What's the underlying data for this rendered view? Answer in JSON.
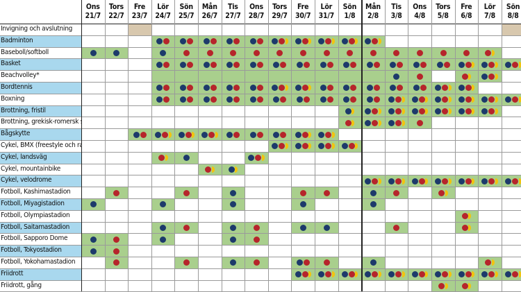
{
  "days": [
    {
      "name": "Ons",
      "date": "21/7"
    },
    {
      "name": "Tors",
      "date": "22/7"
    },
    {
      "name": "Fre",
      "date": "23/7"
    },
    {
      "name": "Lör",
      "date": "24/7"
    },
    {
      "name": "Sön",
      "date": "25/7"
    },
    {
      "name": "Mån",
      "date": "26/7"
    },
    {
      "name": "Tis",
      "date": "27/7"
    },
    {
      "name": "Ons",
      "date": "28/7"
    },
    {
      "name": "Tors",
      "date": "29/7"
    },
    {
      "name": "Fre",
      "date": "30/7"
    },
    {
      "name": "Lör",
      "date": "31/7"
    },
    {
      "name": "Sön",
      "date": "1/8"
    },
    {
      "name": "Mån",
      "date": "2/8"
    },
    {
      "name": "Tis",
      "date": "3/8"
    },
    {
      "name": "Ons",
      "date": "4/8"
    },
    {
      "name": "Tors",
      "date": "5/8"
    },
    {
      "name": "Fre",
      "date": "6/8"
    },
    {
      "name": "Lör",
      "date": "7/8"
    },
    {
      "name": "Sön",
      "date": "8/8"
    }
  ],
  "colors": {
    "green": "#a9cf8d",
    "blue": "#a9d8ee",
    "beige": "#d8c8ae",
    "navy_dot": "#1d3a6b",
    "red_dot": "#b6252b",
    "gold_dot": "#f1c40f"
  },
  "rows": [
    {
      "label": "Invigning och avslutning",
      "blue": false,
      "cells": [
        "",
        "",
        "B",
        "",
        "",
        "",
        "",
        "",
        "",
        "",
        "",
        "",
        "",
        "",
        "",
        "",
        "",
        "",
        "B"
      ]
    },
    {
      "label": "Badminton",
      "blue": true,
      "cells": [
        "",
        "",
        "",
        "nr",
        "nr",
        "nr",
        "nr",
        "nr",
        "nrg",
        "nrg",
        "nrg",
        "nrg",
        "nrg",
        "",
        "",
        "",
        "",
        "",
        ""
      ]
    },
    {
      "label": "Baseboll/softboll",
      "blue": false,
      "cells": [
        "n",
        "n",
        "",
        "n",
        "r",
        "r",
        "r",
        "r",
        "r",
        "r",
        "r",
        "r",
        "r",
        "r",
        "r",
        "r",
        "r",
        "rg",
        ""
      ]
    },
    {
      "label": "Basket",
      "blue": true,
      "cells": [
        "",
        "",
        "",
        "nr",
        "nr",
        "nr",
        "nr",
        "nr",
        "nr",
        "nr",
        "nr",
        "nr",
        "nr",
        "nr",
        "nr",
        "nr",
        "nrg",
        "nrg",
        "nrg"
      ]
    },
    {
      "label": "Beachvolley*",
      "blue": false,
      "cells": [
        "",
        "",
        "",
        "e",
        "e",
        "e",
        "e",
        "e",
        "e",
        "e",
        "e",
        "e",
        "e",
        "n",
        "r",
        "",
        "rg",
        "nrg",
        ""
      ]
    },
    {
      "label": "Bordtennis",
      "blue": true,
      "cells": [
        "",
        "",
        "",
        "nr",
        "nr",
        "nr",
        "nr",
        "nr",
        "nrg",
        "nrg",
        "nr",
        "nr",
        "nr",
        "nr",
        "nr",
        "nrg",
        "nrg",
        "",
        ""
      ]
    },
    {
      "label": "Boxning",
      "blue": false,
      "cells": [
        "",
        "",
        "",
        "nr",
        "nr",
        "nr",
        "nr",
        "nr",
        "nr",
        "nr",
        "nr",
        "nr",
        "nr",
        "nrg",
        "nrg",
        "nrg",
        "nrg",
        "nrg",
        "nrg"
      ]
    },
    {
      "label": "Brottning, fristil",
      "blue": true,
      "cells": [
        "",
        "",
        "",
        "",
        "",
        "",
        "",
        "",
        "",
        "",
        "",
        "ng",
        "nrg",
        "nrg",
        "nrg",
        "nrg",
        "nrg",
        "nrg",
        ""
      ]
    },
    {
      "label": "Brottning, grekisk-romersk stil",
      "blue": false,
      "cells": [
        "",
        "",
        "",
        "",
        "",
        "",
        "",
        "",
        "",
        "",
        "",
        "rg",
        "nrg",
        "nrg",
        "r",
        "",
        "",
        "",
        ""
      ]
    },
    {
      "label": "Bågskytte",
      "blue": true,
      "cells": [
        "",
        "",
        "nr",
        "nrg",
        "nrg",
        "nrg",
        "nr",
        "nr",
        "nr",
        "nrg",
        "nrg",
        "",
        "",
        "",
        "",
        "",
        "",
        "",
        ""
      ]
    },
    {
      "label": "Cykel, BMX (freestyle och racing)",
      "blue": false,
      "cells": [
        "",
        "",
        "",
        "",
        "",
        "",
        "",
        "",
        "nrg",
        "nrg",
        "nrg",
        "nrg",
        "",
        "",
        "",
        "",
        "",
        "",
        ""
      ]
    },
    {
      "label": "Cykel, landsväg",
      "blue": true,
      "cells": [
        "",
        "",
        "",
        "rg",
        "n",
        "",
        "",
        "nrg",
        "",
        "",
        "",
        "",
        "",
        "",
        "",
        "",
        "",
        "",
        ""
      ]
    },
    {
      "label": "Cykel, mountainbike",
      "blue": false,
      "cells": [
        "",
        "",
        "",
        "",
        "",
        "rg",
        "ng",
        "",
        "",
        "",
        "",
        "",
        "",
        "",
        "",
        "",
        "",
        "",
        ""
      ]
    },
    {
      "label": "Cykel, velodrome",
      "blue": true,
      "cells": [
        "",
        "",
        "",
        "",
        "",
        "",
        "",
        "",
        "",
        "",
        "",
        "",
        "nrg",
        "nrg",
        "nrg",
        "nrg",
        "nrg",
        "nrg",
        "nrg"
      ]
    },
    {
      "label": "Fotboll, Kashimastadion",
      "blue": false,
      "cells": [
        "",
        "r",
        "",
        "",
        "r",
        "",
        "n",
        "",
        "",
        "r",
        "r",
        "",
        "n",
        "r",
        "",
        "rg",
        "",
        "",
        ""
      ]
    },
    {
      "label": "Fotboll, Miyagistadion",
      "blue": true,
      "cells": [
        "n",
        "",
        "",
        "n",
        "",
        "",
        "n",
        "",
        "",
        "n",
        "",
        "",
        "n",
        "",
        "",
        "",
        "",
        "",
        ""
      ]
    },
    {
      "label": "Fotboll, Olympiastadion",
      "blue": false,
      "cells": [
        "",
        "",
        "",
        "",
        "",
        "",
        "",
        "",
        "",
        "",
        "",
        "",
        "",
        "",
        "",
        "",
        "rg",
        "",
        ""
      ]
    },
    {
      "label": "Fotboll, Saitamastadion",
      "blue": true,
      "cells": [
        "",
        "",
        "",
        "n",
        "r",
        "",
        "n",
        "r",
        "",
        "n",
        "n",
        "",
        "",
        "r",
        "",
        "",
        "rg",
        "",
        ""
      ]
    },
    {
      "label": "Fotboll, Sapporo Dome",
      "blue": false,
      "cells": [
        "n",
        "r",
        "",
        "n",
        "",
        "",
        "n",
        "r",
        "",
        "",
        "",
        "",
        "",
        "",
        "",
        "",
        "",
        "",
        ""
      ]
    },
    {
      "label": "Fotboll, Tokyostadion",
      "blue": true,
      "cells": [
        "n",
        "r",
        "",
        "",
        "",
        "",
        "",
        "",
        "",
        "",
        "",
        "",
        "",
        "",
        "",
        "",
        "",
        "",
        ""
      ]
    },
    {
      "label": "Fotboll, Yokohamastadion",
      "blue": false,
      "cells": [
        "",
        "r",
        "",
        "",
        "r",
        "",
        "n",
        "r",
        "",
        "nr",
        "r",
        "",
        "n",
        "",
        "",
        "",
        "",
        "rg",
        ""
      ]
    },
    {
      "label": "Friidrott",
      "blue": true,
      "cells": [
        "",
        "",
        "",
        "",
        "",
        "",
        "",
        "",
        "",
        "nrg",
        "nrg",
        "nrg",
        "nrg",
        "nrg",
        "nrg",
        "nrg",
        "nrg",
        "nrg",
        "nrg"
      ]
    },
    {
      "label": "Friidrott, gång",
      "blue": false,
      "cells": [
        "",
        "",
        "",
        "",
        "",
        "",
        "",
        "",
        "",
        "",
        "",
        "",
        "",
        "",
        "",
        "rg",
        "rg",
        "",
        ""
      ]
    }
  ]
}
